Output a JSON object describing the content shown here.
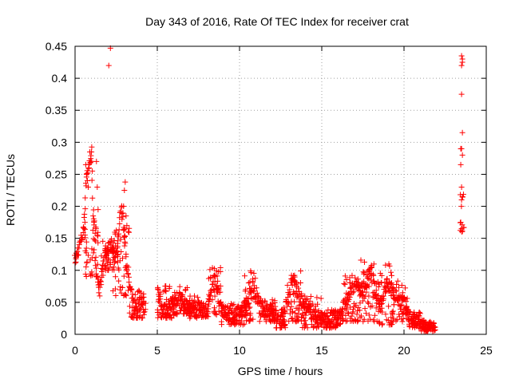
{
  "chart_data": {
    "type": "scatter",
    "title": "Day 343 of 2016, Rate Of TEC Index for receiver crat",
    "xlabel": "GPS time / hours",
    "ylabel": "ROTI / TECUs",
    "xlim": [
      0,
      25
    ],
    "ylim": [
      0,
      0.45
    ],
    "x_ticks": [
      "0",
      "5",
      "10",
      "15",
      "20",
      "25"
    ],
    "y_ticks": [
      "0",
      "0.05",
      "0.1",
      "0.15",
      "0.2",
      "0.25",
      "0.3",
      "0.35",
      "0.4",
      "0.45"
    ],
    "grid": true,
    "marker": "+",
    "point_color": "#ff0000",
    "trace": [
      [
        0.0,
        0.115
      ],
      [
        0.5,
        0.16
      ],
      [
        0.7,
        0.25
      ],
      [
        0.9,
        0.27
      ],
      [
        1.0,
        0.285
      ],
      [
        1.1,
        0.2
      ],
      [
        1.2,
        0.15
      ],
      [
        1.3,
        0.1
      ],
      [
        1.5,
        0.065
      ],
      [
        1.8,
        0.12
      ],
      [
        2.0,
        0.13
      ],
      [
        2.2,
        0.14
      ],
      [
        2.5,
        0.12
      ],
      [
        2.8,
        0.2
      ],
      [
        3.0,
        0.16
      ],
      [
        3.2,
        0.09
      ],
      [
        3.5,
        0.05
      ],
      [
        3.8,
        0.04
      ],
      [
        4.0,
        0.05
      ],
      [
        4.2,
        0.06
      ],
      [
        5.0,
        0.07
      ],
      [
        5.3,
        0.04
      ],
      [
        5.6,
        0.035
      ],
      [
        6.0,
        0.05
      ],
      [
        6.3,
        0.06
      ],
      [
        6.6,
        0.05
      ],
      [
        7.0,
        0.04
      ],
      [
        7.5,
        0.045
      ],
      [
        8.0,
        0.035
      ],
      [
        8.3,
        0.07
      ],
      [
        8.5,
        0.09
      ],
      [
        8.8,
        0.05
      ],
      [
        9.0,
        0.035
      ],
      [
        9.5,
        0.03
      ],
      [
        10.0,
        0.035
      ],
      [
        10.5,
        0.05
      ],
      [
        10.8,
        0.08
      ],
      [
        11.0,
        0.06
      ],
      [
        11.5,
        0.04
      ],
      [
        12.0,
        0.035
      ],
      [
        12.5,
        0.025
      ],
      [
        13.0,
        0.06
      ],
      [
        13.3,
        0.09
      ],
      [
        13.6,
        0.06
      ],
      [
        14.0,
        0.04
      ],
      [
        14.5,
        0.03
      ],
      [
        15.0,
        0.025
      ],
      [
        15.5,
        0.025
      ],
      [
        16.0,
        0.03
      ],
      [
        16.5,
        0.05
      ],
      [
        17.0,
        0.08
      ],
      [
        17.5,
        0.07
      ],
      [
        18.0,
        0.1
      ],
      [
        18.3,
        0.06
      ],
      [
        18.6,
        0.05
      ],
      [
        19.0,
        0.08
      ],
      [
        19.5,
        0.06
      ],
      [
        20.0,
        0.05
      ],
      [
        20.3,
        0.03
      ],
      [
        20.7,
        0.02
      ],
      [
        21.0,
        0.015
      ],
      [
        21.5,
        0.01
      ],
      [
        21.9,
        0.012
      ]
    ],
    "points": [
      [
        0.05,
        0.113
      ],
      [
        0.05,
        0.118
      ],
      [
        0.55,
        0.165
      ],
      [
        0.6,
        0.175
      ],
      [
        0.6,
        0.155
      ],
      [
        0.65,
        0.265
      ],
      [
        0.7,
        0.25
      ],
      [
        0.75,
        0.24
      ],
      [
        0.8,
        0.23
      ],
      [
        0.85,
        0.26
      ],
      [
        0.9,
        0.285
      ],
      [
        1.0,
        0.285
      ],
      [
        1.05,
        0.255
      ],
      [
        1.1,
        0.185
      ],
      [
        1.15,
        0.175
      ],
      [
        1.3,
        0.27
      ],
      [
        1.35,
        0.23
      ],
      [
        1.4,
        0.195
      ],
      [
        1.45,
        0.065
      ],
      [
        1.5,
        0.06
      ],
      [
        2.05,
        0.42
      ],
      [
        2.15,
        0.447
      ],
      [
        3.05,
        0.238
      ],
      [
        3.0,
        0.225
      ],
      [
        2.95,
        0.2
      ],
      [
        3.1,
        0.185
      ],
      [
        3.15,
        0.17
      ]
    ],
    "bands": [
      [
        0.6,
        1.4,
        0.09,
        0.18
      ],
      [
        1.6,
        2.5,
        0.1,
        0.15
      ],
      [
        2.3,
        3.3,
        0.06,
        0.18
      ],
      [
        3.3,
        4.3,
        0.025,
        0.07
      ],
      [
        5.0,
        5.9,
        0.025,
        0.08
      ],
      [
        5.9,
        6.9,
        0.03,
        0.075
      ],
      [
        6.9,
        8.1,
        0.025,
        0.06
      ],
      [
        8.1,
        8.9,
        0.03,
        0.105
      ],
      [
        8.9,
        10.3,
        0.015,
        0.05
      ],
      [
        10.3,
        11.2,
        0.02,
        0.1
      ],
      [
        11.2,
        12.2,
        0.02,
        0.055
      ],
      [
        12.2,
        12.8,
        0.01,
        0.035
      ],
      [
        12.9,
        13.8,
        0.02,
        0.1
      ],
      [
        13.8,
        15.0,
        0.01,
        0.06
      ],
      [
        15.0,
        16.2,
        0.01,
        0.04
      ],
      [
        16.2,
        17.3,
        0.02,
        0.095
      ],
      [
        17.3,
        18.4,
        0.02,
        0.12
      ],
      [
        18.4,
        19.3,
        0.015,
        0.11
      ],
      [
        19.3,
        20.3,
        0.02,
        0.085
      ],
      [
        20.3,
        21.0,
        0.01,
        0.035
      ],
      [
        21.0,
        21.9,
        0.005,
        0.018
      ],
      [
        23.4,
        23.65,
        0.16,
        0.22
      ]
    ],
    "late_points": [
      [
        23.5,
        0.435
      ],
      [
        23.55,
        0.43
      ],
      [
        23.5,
        0.42
      ],
      [
        23.55,
        0.425
      ],
      [
        23.5,
        0.375
      ],
      [
        23.55,
        0.315
      ],
      [
        23.45,
        0.29
      ],
      [
        23.5,
        0.29
      ],
      [
        23.55,
        0.28
      ],
      [
        23.45,
        0.265
      ],
      [
        23.5,
        0.23
      ],
      [
        23.55,
        0.215
      ],
      [
        23.5,
        0.21
      ],
      [
        23.45,
        0.175
      ],
      [
        23.5,
        0.165
      ]
    ]
  }
}
